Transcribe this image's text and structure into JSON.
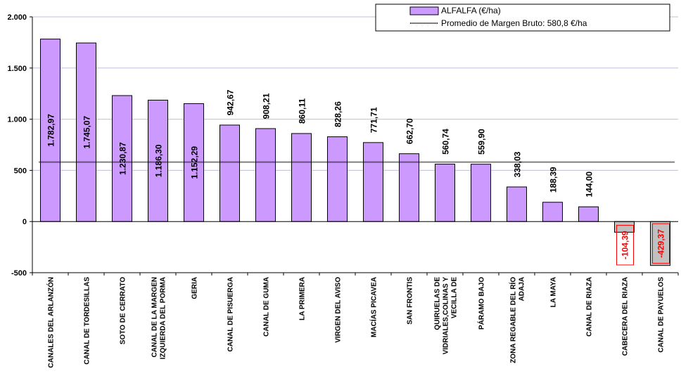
{
  "chart_data": {
    "type": "bar",
    "categories": [
      "CANALES DEL ARLANZÓN",
      "CANAL DE TORDESILLAS",
      "SOTO DE CERRATO",
      "CANAL DE LA MARGEN IZQUIERDA DEL PORMA",
      "GERIA",
      "CANAL DE PISUERGA",
      "CANAL DE GUMA",
      "LA PRIMERA",
      "VIRGEN DEL AVISO",
      "MACÍAS PICAVEA",
      "SAN FRONTIS",
      "QUIRUELAS DE VIDRIALES,COLINAS Y VECILLA DE",
      "PÁRAMO BAJO",
      "ZONA REGABLE DEL RÍO ADAJA",
      "LA MAYA",
      "CANAL DE RIAZA",
      "CABECERA DEL RIAZA",
      "CANAL DE PAYUELOS"
    ],
    "category_lines": [
      [
        "CANALES DEL ARLANZÓN"
      ],
      [
        "CANAL DE TORDESILLAS"
      ],
      [
        "SOTO DE CERRATO"
      ],
      [
        "CANAL DE LA MARGEN",
        "IZQUIERDA DEL PORMA"
      ],
      [
        "GERIA"
      ],
      [
        "CANAL DE PISUERGA"
      ],
      [
        "CANAL DE GUMA"
      ],
      [
        "LA PRIMERA"
      ],
      [
        "VIRGEN DEL AVISO"
      ],
      [
        "MACÍAS PICAVEA"
      ],
      [
        "SAN FRONTIS"
      ],
      [
        "QUIRUELAS DE",
        "VIDRIALES,COLINAS Y",
        "VECILLA DE"
      ],
      [
        "PÁRAMO BAJO"
      ],
      [
        "ZONA REGABLE DEL RÍO",
        "ADAJA"
      ],
      [
        "LA MAYA"
      ],
      [
        "CANAL DE RIAZA"
      ],
      [
        "CABECERA DEL RIAZA"
      ],
      [
        "CANAL DE PAYUELOS"
      ]
    ],
    "series": [
      {
        "name": "ALFALFA (€/ha)",
        "values": [
          1782.97,
          1745.07,
          1230.87,
          1186.3,
          1152.29,
          942.67,
          908.21,
          860.11,
          828.26,
          771.71,
          662.7,
          560.74,
          559.9,
          338.03,
          188.39,
          144.0,
          -104.39,
          -429.37
        ],
        "labels": [
          "1.782,97",
          "1.745,07",
          "1.230,87",
          "1.186,30",
          "1.152,29",
          "942,67",
          "908,21",
          "860,11",
          "828,26",
          "771,71",
          "662,70",
          "560,74",
          "559,90",
          "338,03",
          "188,39",
          "144,00",
          "-104,39",
          "-429,37"
        ]
      }
    ],
    "average": {
      "name": "Promedio de Margen Bruto: 580,8 €/ha",
      "value": 580.8
    },
    "ylim": [
      -500,
      2000
    ],
    "yticks": [
      2000,
      1500,
      1000,
      500,
      0,
      -500
    ],
    "ytick_labels": [
      "2.000",
      "1.500",
      "1.000",
      "500",
      "0",
      "-500"
    ],
    "grid": true,
    "legend_position": "top-right",
    "colors": {
      "positive_fill": "#cc99ff",
      "negative_fill": "#c0c0c0",
      "negative_border": "#ff0000",
      "negative_label": "#ff0000",
      "grid": "#c0c0d8",
      "average_line": "#000000"
    }
  }
}
